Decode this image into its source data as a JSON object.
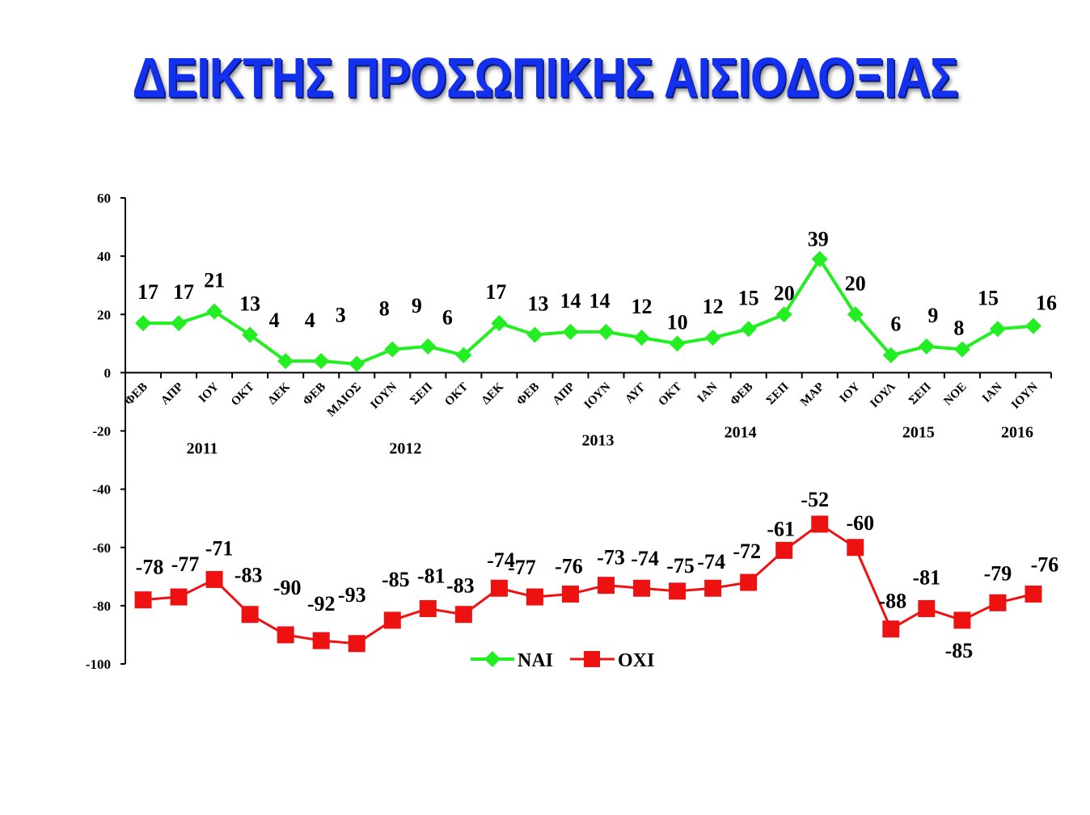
{
  "title": "ΔΕΙΚΤΗΣ ΠΡΟΣΩΠΙΚΗΣ ΑΙΣΙΟΔΟΞΙΑΣ",
  "colors": {
    "title": "#1330ee",
    "nai": "#22ee22",
    "oxi": "#ee1111"
  },
  "chart_data": {
    "type": "line",
    "title": "ΔΕΙΚΤΗΣ ΠΡΟΣΩΠΙΚΗΣ ΑΙΣΙΟΔΟΞΙΑΣ",
    "xlabel": "",
    "ylabel": "",
    "ylim": [
      -100,
      60
    ],
    "yticks": [
      60,
      40,
      20,
      0,
      -20,
      -40,
      -60,
      -80,
      -100
    ],
    "grid": false,
    "legend": "bottom-center",
    "categories": [
      "ΦΕΒ",
      "ΑΠΡ",
      "ΙΟΥ",
      "ΟΚΤ",
      "ΔΕΚ",
      "ΦΕΒ",
      "ΜΑΙΟΣ",
      "ΙΟΥΝ",
      "ΣΕΠ",
      "ΟΚΤ",
      "ΔΕΚ",
      "ΦΕΒ",
      "ΑΠΡ",
      "ΙΟΥΝ",
      "ΑΥΓ",
      "ΟΚΤ",
      "ΙΑΝ",
      "ΦΕΒ",
      "ΣΕΠ",
      "ΜΑΡ",
      "ΙΟΥ",
      "ΙΟΥΛ",
      "ΣΕΠ",
      "ΝΟΕ",
      "ΙΑΝ",
      "ΙΟΥΝ"
    ],
    "years": [
      {
        "label": "2011",
        "index": 2
      },
      {
        "label": "2012",
        "index": 8
      },
      {
        "label": "2013",
        "index": 13
      },
      {
        "label": "2014",
        "index": 17
      },
      {
        "label": "2015",
        "index": 22
      },
      {
        "label": "2016",
        "index": 25
      }
    ],
    "series": [
      {
        "name": "ΝΑΙ",
        "marker": "diamond",
        "values": [
          17,
          17,
          21,
          13,
          4,
          4,
          3,
          8,
          9,
          6,
          17,
          13,
          14,
          14,
          12,
          10,
          12,
          15,
          20,
          39,
          20,
          6,
          9,
          8,
          15,
          16
        ]
      },
      {
        "name": "ΟΧΙ",
        "marker": "square",
        "values": [
          -78,
          -77,
          -71,
          -83,
          -90,
          -92,
          -93,
          -85,
          -81,
          -83,
          -74,
          -77,
          -76,
          -73,
          -74,
          -75,
          -74,
          -72,
          -61,
          -52,
          -60,
          -88,
          -81,
          -85,
          -79,
          -76
        ]
      }
    ]
  }
}
